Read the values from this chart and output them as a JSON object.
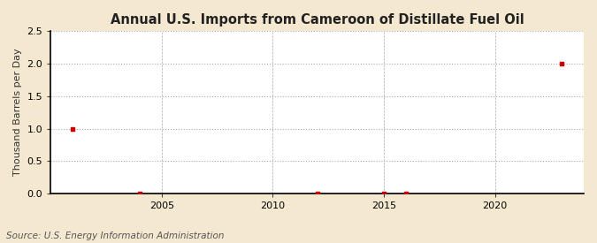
{
  "title": "Annual U.S. Imports from Cameroon of Distillate Fuel Oil",
  "ylabel": "Thousand Barrels per Day",
  "source_text": "Source: U.S. Energy Information Administration",
  "figure_bg_color": "#f5e8d0",
  "plot_bg_color": "#ffffff",
  "data_points": [
    {
      "year": 2001,
      "value": 1.0
    },
    {
      "year": 2004,
      "value": 0.0
    },
    {
      "year": 2012,
      "value": 0.0
    },
    {
      "year": 2015,
      "value": 0.0
    },
    {
      "year": 2016,
      "value": 0.0
    },
    {
      "year": 2023,
      "value": 2.0
    }
  ],
  "xlim": [
    2000,
    2024
  ],
  "ylim": [
    0,
    2.5
  ],
  "yticks": [
    0.0,
    0.5,
    1.0,
    1.5,
    2.0,
    2.5
  ],
  "xticks": [
    2005,
    2010,
    2015,
    2020
  ],
  "marker_color": "#cc0000",
  "marker_size": 3.5,
  "grid_color": "#aaaaaa",
  "title_fontsize": 10.5,
  "label_fontsize": 8,
  "tick_fontsize": 8,
  "source_fontsize": 7.5
}
